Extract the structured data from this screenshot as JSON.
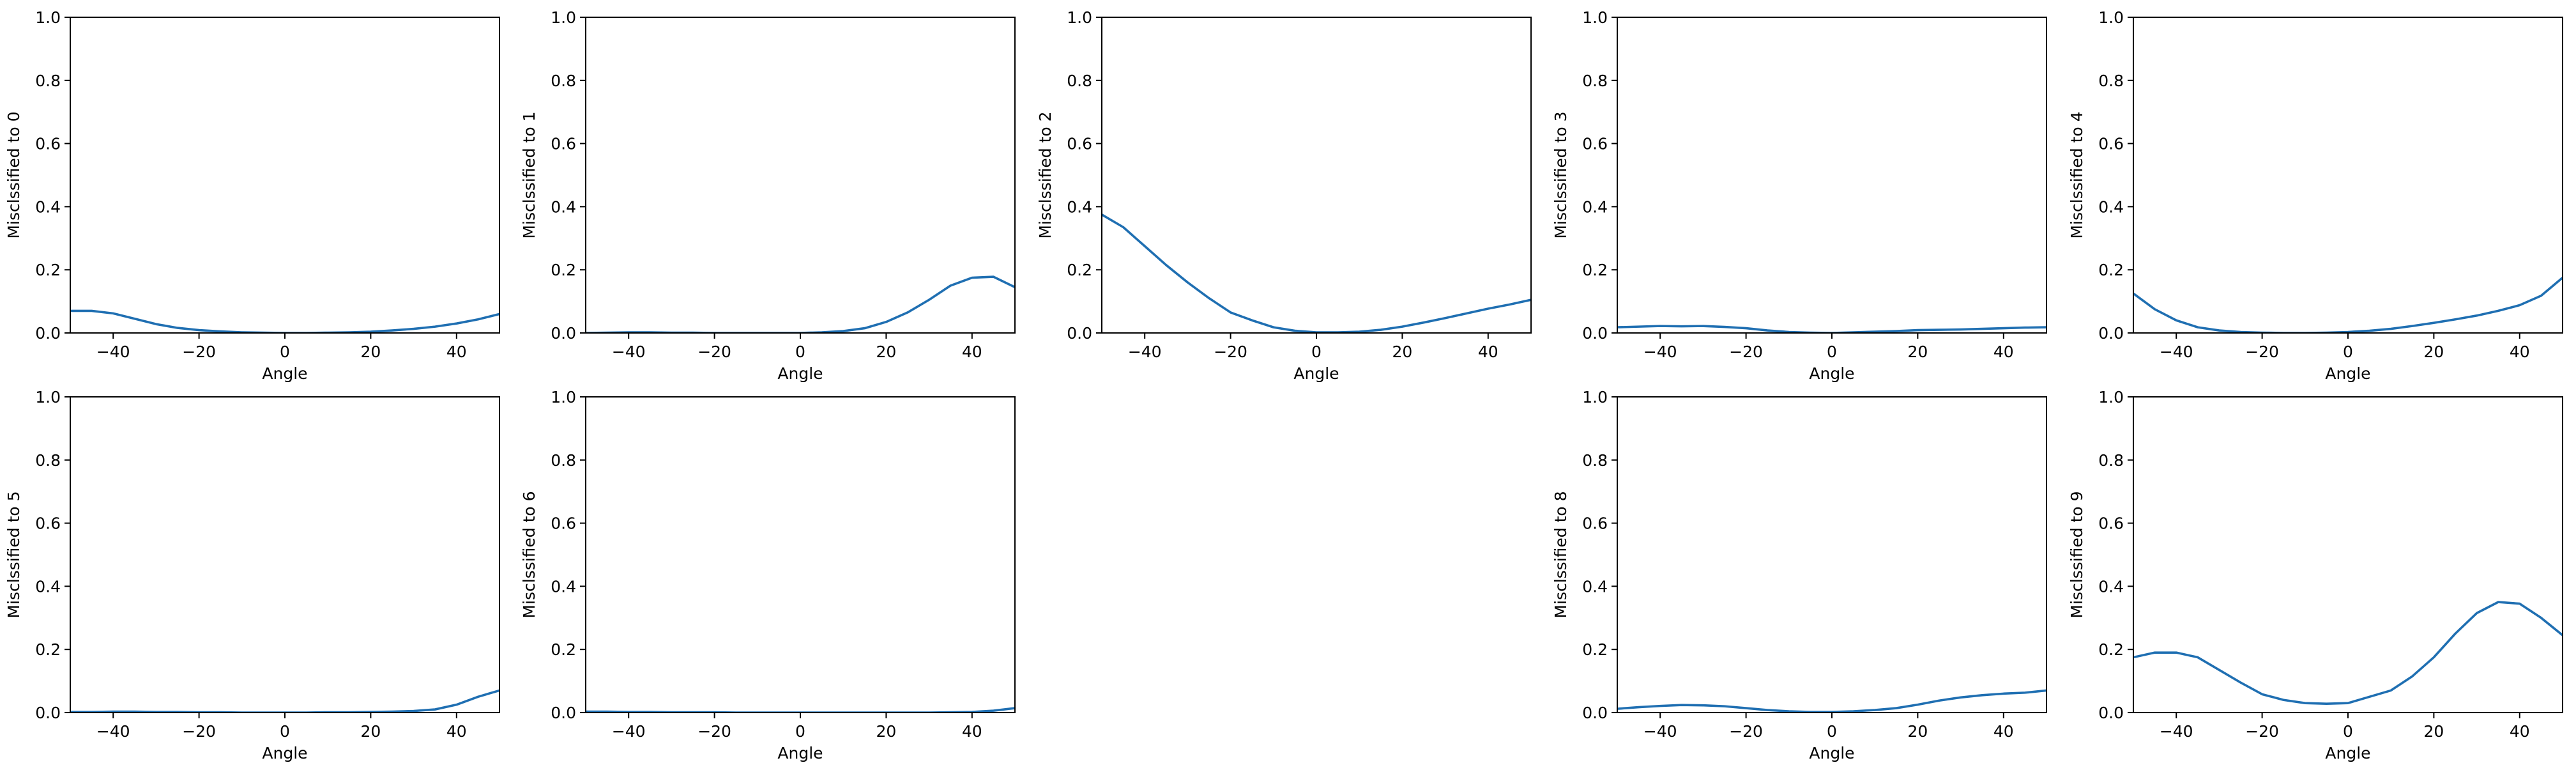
{
  "colors": {
    "line": "#1f6fb2",
    "axes": "#000000",
    "background": "#ffffff"
  },
  "chart_data": [
    {
      "type": "line",
      "xlabel": "Angle",
      "ylabel": "Misclssified to 0",
      "xlim": [
        -50,
        50
      ],
      "ylim": [
        0,
        1
      ],
      "xticks": [
        -40,
        -20,
        0,
        20,
        40
      ],
      "xtick_labels": [
        "−40",
        "−20",
        "0",
        "20",
        "40"
      ],
      "yticks": [
        0,
        0.2,
        0.4,
        0.6,
        0.8,
        1.0
      ],
      "ytick_labels": [
        "0.0",
        "0.2",
        "0.4",
        "0.6",
        "0.8",
        "1.0"
      ],
      "x": [
        -50,
        -45,
        -40,
        -35,
        -30,
        -25,
        -20,
        -15,
        -10,
        -5,
        0,
        5,
        10,
        15,
        20,
        25,
        30,
        35,
        40,
        45,
        50
      ],
      "y": [
        0.07,
        0.07,
        0.062,
        0.045,
        0.028,
        0.016,
        0.009,
        0.005,
        0.002,
        0.001,
        0.0,
        0.0,
        0.001,
        0.002,
        0.004,
        0.008,
        0.013,
        0.02,
        0.03,
        0.043,
        0.06
      ]
    },
    {
      "type": "line",
      "xlabel": "Angle",
      "ylabel": "Misclssified to 1",
      "xlim": [
        -50,
        50
      ],
      "ylim": [
        0,
        1
      ],
      "xticks": [
        -40,
        -20,
        0,
        20,
        40
      ],
      "xtick_labels": [
        "−40",
        "−20",
        "0",
        "20",
        "40"
      ],
      "yticks": [
        0,
        0.2,
        0.4,
        0.6,
        0.8,
        1.0
      ],
      "ytick_labels": [
        "0.0",
        "0.2",
        "0.4",
        "0.6",
        "0.8",
        "1.0"
      ],
      "x": [
        -50,
        -45,
        -40,
        -35,
        -30,
        -25,
        -20,
        -15,
        -10,
        -5,
        0,
        5,
        10,
        15,
        20,
        25,
        30,
        35,
        40,
        45,
        50
      ],
      "y": [
        0.0,
        0.001,
        0.002,
        0.002,
        0.001,
        0.001,
        0.0,
        0.0,
        0.0,
        0.0,
        0.0,
        0.002,
        0.006,
        0.015,
        0.035,
        0.065,
        0.105,
        0.15,
        0.175,
        0.178,
        0.145
      ]
    },
    {
      "type": "line",
      "xlabel": "Angle",
      "ylabel": "Misclssified to 2",
      "xlim": [
        -50,
        50
      ],
      "ylim": [
        0,
        1
      ],
      "xticks": [
        -40,
        -20,
        0,
        20,
        40
      ],
      "xtick_labels": [
        "−40",
        "−20",
        "0",
        "20",
        "40"
      ],
      "yticks": [
        0,
        0.2,
        0.4,
        0.6,
        0.8,
        1.0
      ],
      "ytick_labels": [
        "0.0",
        "0.2",
        "0.4",
        "0.6",
        "0.8",
        "1.0"
      ],
      "x": [
        -50,
        -45,
        -40,
        -35,
        -30,
        -25,
        -20,
        -15,
        -10,
        -5,
        0,
        5,
        10,
        15,
        20,
        25,
        30,
        35,
        40,
        45,
        50
      ],
      "y": [
        0.375,
        0.335,
        0.275,
        0.215,
        0.16,
        0.11,
        0.065,
        0.04,
        0.018,
        0.007,
        0.002,
        0.002,
        0.004,
        0.01,
        0.02,
        0.033,
        0.047,
        0.062,
        0.077,
        0.09,
        0.105
      ]
    },
    {
      "type": "line",
      "xlabel": "Angle",
      "ylabel": "Misclssified to 3",
      "xlim": [
        -50,
        50
      ],
      "ylim": [
        0,
        1
      ],
      "xticks": [
        -40,
        -20,
        0,
        20,
        40
      ],
      "xtick_labels": [
        "−40",
        "−20",
        "0",
        "20",
        "40"
      ],
      "yticks": [
        0,
        0.2,
        0.4,
        0.6,
        0.8,
        1.0
      ],
      "ytick_labels": [
        "0.0",
        "0.2",
        "0.4",
        "0.6",
        "0.8",
        "1.0"
      ],
      "x": [
        -50,
        -45,
        -40,
        -35,
        -30,
        -25,
        -20,
        -15,
        -10,
        -5,
        0,
        5,
        10,
        15,
        20,
        25,
        30,
        35,
        40,
        45,
        50
      ],
      "y": [
        0.018,
        0.02,
        0.022,
        0.021,
        0.022,
        0.019,
        0.015,
        0.008,
        0.003,
        0.001,
        0.0,
        0.002,
        0.004,
        0.006,
        0.009,
        0.01,
        0.011,
        0.013,
        0.015,
        0.017,
        0.018
      ]
    },
    {
      "type": "line",
      "xlabel": "Angle",
      "ylabel": "Misclssified to 4",
      "xlim": [
        -50,
        50
      ],
      "ylim": [
        0,
        1
      ],
      "xticks": [
        -40,
        -20,
        0,
        20,
        40
      ],
      "xtick_labels": [
        "−40",
        "−20",
        "0",
        "20",
        "40"
      ],
      "yticks": [
        0,
        0.2,
        0.4,
        0.6,
        0.8,
        1.0
      ],
      "ytick_labels": [
        "0.0",
        "0.2",
        "0.4",
        "0.6",
        "0.8",
        "1.0"
      ],
      "x": [
        -50,
        -45,
        -40,
        -35,
        -30,
        -25,
        -20,
        -15,
        -10,
        -5,
        0,
        5,
        10,
        15,
        20,
        25,
        30,
        35,
        40,
        45,
        50
      ],
      "y": [
        0.125,
        0.075,
        0.04,
        0.018,
        0.008,
        0.003,
        0.001,
        0.0,
        0.0,
        0.001,
        0.003,
        0.007,
        0.013,
        0.022,
        0.032,
        0.043,
        0.055,
        0.07,
        0.088,
        0.118,
        0.175
      ]
    },
    {
      "type": "line",
      "xlabel": "Angle",
      "ylabel": "Misclssified to 5",
      "xlim": [
        -50,
        50
      ],
      "ylim": [
        0,
        1
      ],
      "xticks": [
        -40,
        -20,
        0,
        20,
        40
      ],
      "xtick_labels": [
        "−40",
        "−20",
        "0",
        "20",
        "40"
      ],
      "yticks": [
        0,
        0.2,
        0.4,
        0.6,
        0.8,
        1.0
      ],
      "ytick_labels": [
        "0.0",
        "0.2",
        "0.4",
        "0.6",
        "0.8",
        "1.0"
      ],
      "x": [
        -50,
        -45,
        -40,
        -35,
        -30,
        -25,
        -20,
        -15,
        -10,
        -5,
        0,
        5,
        10,
        15,
        20,
        25,
        30,
        35,
        40,
        45,
        50
      ],
      "y": [
        0.002,
        0.002,
        0.003,
        0.003,
        0.002,
        0.002,
        0.001,
        0.001,
        0.0,
        0.0,
        0.0,
        0.0,
        0.001,
        0.001,
        0.002,
        0.003,
        0.005,
        0.01,
        0.025,
        0.05,
        0.07
      ]
    },
    {
      "type": "line",
      "xlabel": "Angle",
      "ylabel": "Misclssified to 6",
      "xlim": [
        -50,
        50
      ],
      "ylim": [
        0,
        1
      ],
      "xticks": [
        -40,
        -20,
        0,
        20,
        40
      ],
      "xtick_labels": [
        "−40",
        "−20",
        "0",
        "20",
        "40"
      ],
      "yticks": [
        0,
        0.2,
        0.4,
        0.6,
        0.8,
        1.0
      ],
      "ytick_labels": [
        "0.0",
        "0.2",
        "0.4",
        "0.6",
        "0.8",
        "1.0"
      ],
      "x": [
        -50,
        -45,
        -40,
        -35,
        -30,
        -25,
        -20,
        -15,
        -10,
        -5,
        0,
        5,
        10,
        15,
        20,
        25,
        30,
        35,
        40,
        45,
        50
      ],
      "y": [
        0.003,
        0.003,
        0.002,
        0.002,
        0.001,
        0.001,
        0.001,
        0.0,
        0.0,
        0.0,
        0.0,
        0.0,
        0.0,
        0.0,
        0.0,
        0.0,
        0.0,
        0.001,
        0.002,
        0.006,
        0.014
      ]
    },
    {
      "type": "line",
      "xlabel": "Angle",
      "ylabel": "Misclssified to 8",
      "xlim": [
        -50,
        50
      ],
      "ylim": [
        0,
        1
      ],
      "xticks": [
        -40,
        -20,
        0,
        20,
        40
      ],
      "xtick_labels": [
        "−40",
        "−20",
        "0",
        "20",
        "40"
      ],
      "yticks": [
        0,
        0.2,
        0.4,
        0.6,
        0.8,
        1.0
      ],
      "ytick_labels": [
        "0.0",
        "0.2",
        "0.4",
        "0.6",
        "0.8",
        "1.0"
      ],
      "x": [
        -50,
        -45,
        -40,
        -35,
        -30,
        -25,
        -20,
        -15,
        -10,
        -5,
        0,
        5,
        10,
        15,
        20,
        25,
        30,
        35,
        40,
        45,
        50
      ],
      "y": [
        0.012,
        0.017,
        0.021,
        0.024,
        0.023,
        0.02,
        0.014,
        0.008,
        0.004,
        0.002,
        0.002,
        0.004,
        0.008,
        0.014,
        0.025,
        0.038,
        0.048,
        0.055,
        0.06,
        0.063,
        0.07
      ]
    },
    {
      "type": "line",
      "xlabel": "Angle",
      "ylabel": "Misclssified to 9",
      "xlim": [
        -50,
        50
      ],
      "ylim": [
        0,
        1
      ],
      "xticks": [
        -40,
        -20,
        0,
        20,
        40
      ],
      "xtick_labels": [
        "−40",
        "−20",
        "0",
        "20",
        "40"
      ],
      "yticks": [
        0,
        0.2,
        0.4,
        0.6,
        0.8,
        1.0
      ],
      "ytick_labels": [
        "0.0",
        "0.2",
        "0.4",
        "0.6",
        "0.8",
        "1.0"
      ],
      "x": [
        -50,
        -45,
        -40,
        -35,
        -30,
        -25,
        -20,
        -15,
        -10,
        -5,
        0,
        5,
        10,
        15,
        20,
        25,
        30,
        35,
        40,
        45,
        50
      ],
      "y": [
        0.175,
        0.19,
        0.19,
        0.175,
        0.135,
        0.095,
        0.058,
        0.04,
        0.03,
        0.028,
        0.03,
        0.05,
        0.07,
        0.115,
        0.175,
        0.25,
        0.315,
        0.35,
        0.345,
        0.3,
        0.245
      ]
    }
  ]
}
